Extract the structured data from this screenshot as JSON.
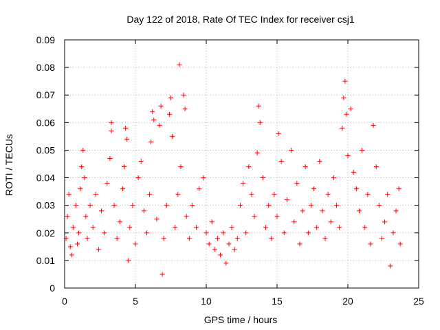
{
  "chart_data": {
    "type": "scatter",
    "title": "Day 122 of 2018, Rate Of TEC Index for receiver csj1",
    "xlabel": "GPS time / hours",
    "ylabel": "ROTI / TECUs",
    "xlim": [
      0,
      25
    ],
    "ylim": [
      0,
      0.09
    ],
    "xticks": [
      "0",
      "5",
      "10",
      "15",
      "20",
      "25"
    ],
    "yticks": [
      "0",
      "0.01",
      "0.02",
      "0.03",
      "0.04",
      "0.05",
      "0.06",
      "0.07",
      "0.08",
      "0.09"
    ],
    "grid": true,
    "marker": "+",
    "color": "#ff0000",
    "series": [
      {
        "name": "csj1",
        "points": [
          [
            0.1,
            0.018
          ],
          [
            0.2,
            0.026
          ],
          [
            0.3,
            0.034
          ],
          [
            0.4,
            0.015
          ],
          [
            0.5,
            0.012
          ],
          [
            0.6,
            0.022
          ],
          [
            0.8,
            0.03
          ],
          [
            0.9,
            0.016
          ],
          [
            1.0,
            0.02
          ],
          [
            1.1,
            0.036
          ],
          [
            1.2,
            0.044
          ],
          [
            1.3,
            0.05
          ],
          [
            1.4,
            0.04
          ],
          [
            1.5,
            0.026
          ],
          [
            1.6,
            0.018
          ],
          [
            1.8,
            0.03
          ],
          [
            2.0,
            0.022
          ],
          [
            2.2,
            0.034
          ],
          [
            2.4,
            0.014
          ],
          [
            2.6,
            0.028
          ],
          [
            2.8,
            0.02
          ],
          [
            3.0,
            0.038
          ],
          [
            3.2,
            0.047
          ],
          [
            3.3,
            0.06
          ],
          [
            3.3,
            0.057
          ],
          [
            3.5,
            0.03
          ],
          [
            3.7,
            0.018
          ],
          [
            3.9,
            0.024
          ],
          [
            4.1,
            0.036
          ],
          [
            4.2,
            0.044
          ],
          [
            4.3,
            0.058
          ],
          [
            4.4,
            0.054
          ],
          [
            4.5,
            0.01
          ],
          [
            4.6,
            0.022
          ],
          [
            4.8,
            0.03
          ],
          [
            5.0,
            0.016
          ],
          [
            5.2,
            0.04
          ],
          [
            5.4,
            0.046
          ],
          [
            5.6,
            0.028
          ],
          [
            5.8,
            0.02
          ],
          [
            6.0,
            0.034
          ],
          [
            6.1,
            0.053
          ],
          [
            6.2,
            0.064
          ],
          [
            6.3,
            0.061
          ],
          [
            6.5,
            0.025
          ],
          [
            6.7,
            0.059
          ],
          [
            6.8,
            0.066
          ],
          [
            6.9,
            0.005
          ],
          [
            7.0,
            0.018
          ],
          [
            7.2,
            0.03
          ],
          [
            7.4,
            0.063
          ],
          [
            7.5,
            0.069
          ],
          [
            7.6,
            0.055
          ],
          [
            7.8,
            0.022
          ],
          [
            8.0,
            0.034
          ],
          [
            8.1,
            0.081
          ],
          [
            8.2,
            0.044
          ],
          [
            8.4,
            0.07
          ],
          [
            8.5,
            0.065
          ],
          [
            8.6,
            0.026
          ],
          [
            8.8,
            0.018
          ],
          [
            9.0,
            0.03
          ],
          [
            9.3,
            0.022
          ],
          [
            9.5,
            0.036
          ],
          [
            9.8,
            0.04
          ],
          [
            10.0,
            0.02
          ],
          [
            10.2,
            0.016
          ],
          [
            10.4,
            0.024
          ],
          [
            10.6,
            0.014
          ],
          [
            10.8,
            0.018
          ],
          [
            11.0,
            0.012
          ],
          [
            11.2,
            0.02
          ],
          [
            11.4,
            0.009
          ],
          [
            11.6,
            0.016
          ],
          [
            11.8,
            0.022
          ],
          [
            12.0,
            0.014
          ],
          [
            12.2,
            0.018
          ],
          [
            12.4,
            0.03
          ],
          [
            12.6,
            0.038
          ],
          [
            12.8,
            0.02
          ],
          [
            13.0,
            0.044
          ],
          [
            13.2,
            0.034
          ],
          [
            13.4,
            0.026
          ],
          [
            13.6,
            0.049
          ],
          [
            13.7,
            0.066
          ],
          [
            13.8,
            0.06
          ],
          [
            14.0,
            0.04
          ],
          [
            14.2,
            0.022
          ],
          [
            14.4,
            0.03
          ],
          [
            14.6,
            0.018
          ],
          [
            14.8,
            0.034
          ],
          [
            15.0,
            0.026
          ],
          [
            15.1,
            0.056
          ],
          [
            15.3,
            0.046
          ],
          [
            15.5,
            0.02
          ],
          [
            15.7,
            0.032
          ],
          [
            16.0,
            0.05
          ],
          [
            16.2,
            0.024
          ],
          [
            16.4,
            0.038
          ],
          [
            16.6,
            0.016
          ],
          [
            16.8,
            0.028
          ],
          [
            17.0,
            0.044
          ],
          [
            17.2,
            0.02
          ],
          [
            17.4,
            0.03
          ],
          [
            17.6,
            0.036
          ],
          [
            17.8,
            0.022
          ],
          [
            18.0,
            0.046
          ],
          [
            18.2,
            0.028
          ],
          [
            18.4,
            0.018
          ],
          [
            18.6,
            0.034
          ],
          [
            18.8,
            0.024
          ],
          [
            19.0,
            0.04
          ],
          [
            19.2,
            0.03
          ],
          [
            19.4,
            0.022
          ],
          [
            19.6,
            0.058
          ],
          [
            19.7,
            0.069
          ],
          [
            19.8,
            0.075
          ],
          [
            19.9,
            0.063
          ],
          [
            20.0,
            0.048
          ],
          [
            20.2,
            0.065
          ],
          [
            20.4,
            0.042
          ],
          [
            20.6,
            0.036
          ],
          [
            20.8,
            0.028
          ],
          [
            21.0,
            0.05
          ],
          [
            21.2,
            0.022
          ],
          [
            21.4,
            0.034
          ],
          [
            21.6,
            0.016
          ],
          [
            21.8,
            0.059
          ],
          [
            22.0,
            0.044
          ],
          [
            22.2,
            0.03
          ],
          [
            22.4,
            0.018
          ],
          [
            22.6,
            0.024
          ],
          [
            22.8,
            0.034
          ],
          [
            23.0,
            0.008
          ],
          [
            23.2,
            0.02
          ],
          [
            23.4,
            0.028
          ],
          [
            23.6,
            0.036
          ],
          [
            23.7,
            0.016
          ]
        ]
      }
    ]
  }
}
